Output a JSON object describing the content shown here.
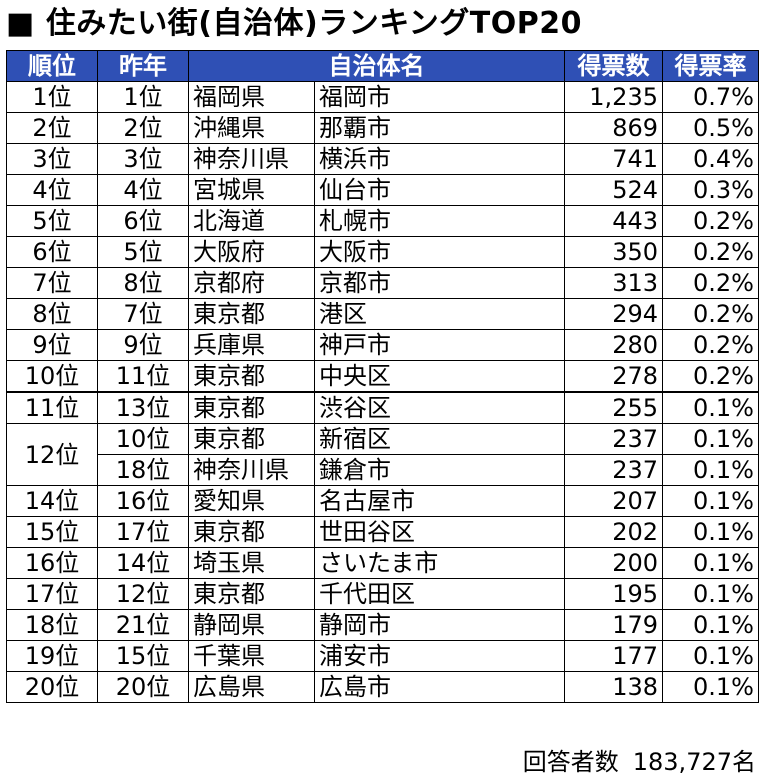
{
  "title": "■ 住みたい街(自治体)ランキングTOP20",
  "colors": {
    "header_bg": "#2F50B5",
    "header_text": "#FFFFFF"
  },
  "headers": {
    "rank": "順位",
    "prev": "昨年",
    "municipality": "自治体名",
    "votes": "得票数",
    "rate": "得票率"
  },
  "rows": [
    {
      "rank": "1位",
      "prev": "1位",
      "pref": "福岡県",
      "city": "福岡市",
      "votes": "1,235",
      "rate": "0.7%"
    },
    {
      "rank": "2位",
      "prev": "2位",
      "pref": "沖縄県",
      "city": "那覇市",
      "votes": "869",
      "rate": "0.5%"
    },
    {
      "rank": "3位",
      "prev": "3位",
      "pref": "神奈川県",
      "city": "横浜市",
      "votes": "741",
      "rate": "0.4%"
    },
    {
      "rank": "4位",
      "prev": "4位",
      "pref": "宮城県",
      "city": "仙台市",
      "votes": "524",
      "rate": "0.3%"
    },
    {
      "rank": "5位",
      "prev": "6位",
      "pref": "北海道",
      "city": "札幌市",
      "votes": "443",
      "rate": "0.2%"
    },
    {
      "rank": "6位",
      "prev": "5位",
      "pref": "大阪府",
      "city": "大阪市",
      "votes": "350",
      "rate": "0.2%"
    },
    {
      "rank": "7位",
      "prev": "8位",
      "pref": "京都府",
      "city": "京都市",
      "votes": "313",
      "rate": "0.2%"
    },
    {
      "rank": "8位",
      "prev": "7位",
      "pref": "東京都",
      "city": "港区",
      "votes": "294",
      "rate": "0.2%"
    },
    {
      "rank": "9位",
      "prev": "9位",
      "pref": "兵庫県",
      "city": "神戸市",
      "votes": "280",
      "rate": "0.2%"
    },
    {
      "rank": "10位",
      "prev": "11位",
      "pref": "東京都",
      "city": "中央区",
      "votes": "278",
      "rate": "0.2%"
    },
    {
      "rank": "11位",
      "prev": "13位",
      "pref": "東京都",
      "city": "渋谷区",
      "votes": "255",
      "rate": "0.1%"
    },
    {
      "rank": "12位",
      "prev": "10位",
      "pref": "東京都",
      "city": "新宿区",
      "votes": "237",
      "rate": "0.1%"
    },
    {
      "rank": "",
      "prev": "18位",
      "pref": "神奈川県",
      "city": "鎌倉市",
      "votes": "237",
      "rate": "0.1%"
    },
    {
      "rank": "14位",
      "prev": "16位",
      "pref": "愛知県",
      "city": "名古屋市",
      "votes": "207",
      "rate": "0.1%"
    },
    {
      "rank": "15位",
      "prev": "17位",
      "pref": "東京都",
      "city": "世田谷区",
      "votes": "202",
      "rate": "0.1%"
    },
    {
      "rank": "16位",
      "prev": "14位",
      "pref": "埼玉県",
      "city": "さいたま市",
      "votes": "200",
      "rate": "0.1%"
    },
    {
      "rank": "17位",
      "prev": "12位",
      "pref": "東京都",
      "city": "千代田区",
      "votes": "195",
      "rate": "0.1%"
    },
    {
      "rank": "18位",
      "prev": "21位",
      "pref": "静岡県",
      "city": "静岡市",
      "votes": "179",
      "rate": "0.1%"
    },
    {
      "rank": "19位",
      "prev": "15位",
      "pref": "千葉県",
      "city": "浦安市",
      "votes": "177",
      "rate": "0.1%"
    },
    {
      "rank": "20位",
      "prev": "20位",
      "pref": "広島県",
      "city": "広島市",
      "votes": "138",
      "rate": "0.1%"
    }
  ],
  "footer": {
    "label": "回答者数",
    "value": "183,727名"
  }
}
